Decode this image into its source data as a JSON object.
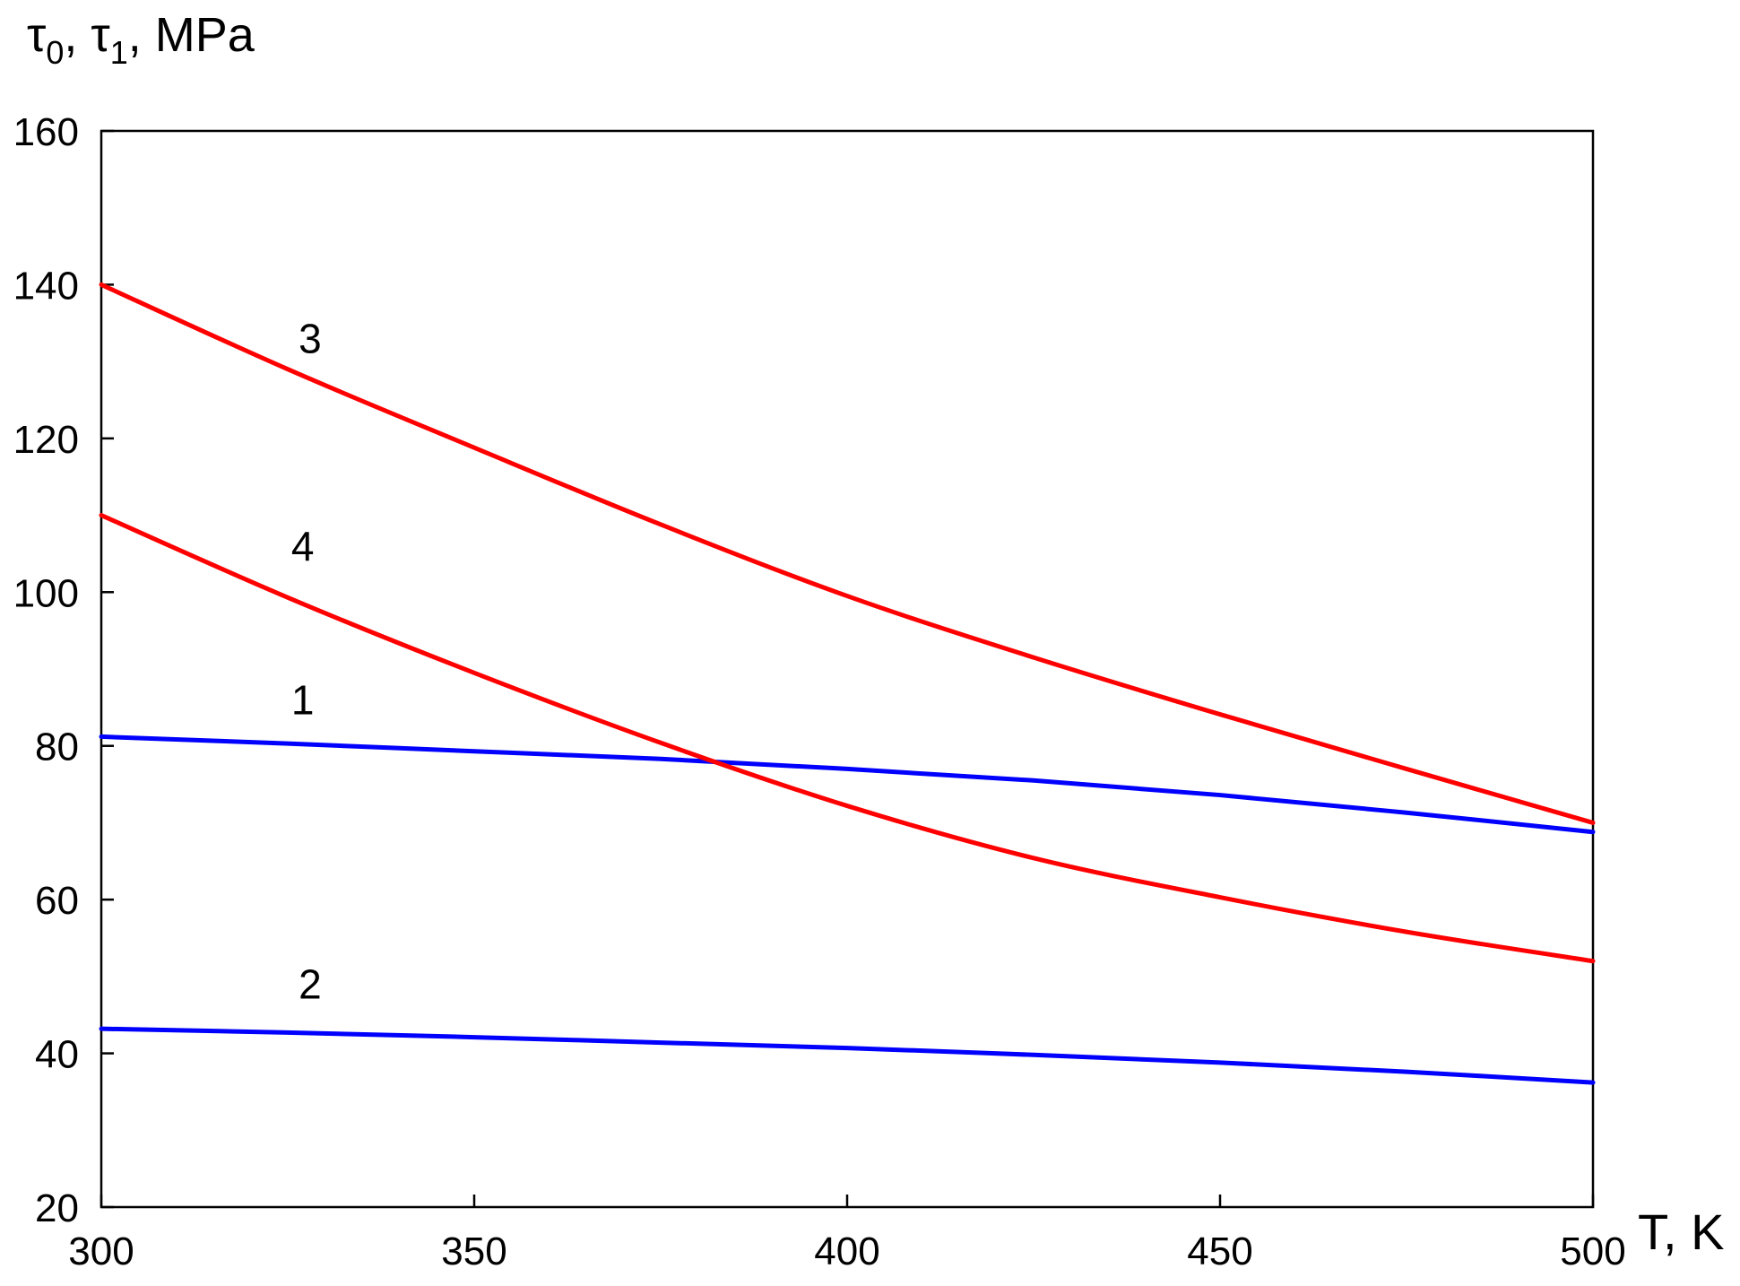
{
  "chart_data": {
    "type": "line",
    "title": "",
    "ylabel": {
      "symbol_a": "τ",
      "sub_a": "0",
      "separator": ", ",
      "symbol_b": "τ",
      "sub_b": "1",
      "unit": ", MPa"
    },
    "xlabel": "T, K",
    "xlim": [
      300,
      500
    ],
    "ylim": [
      20,
      160
    ],
    "xticks": [
      300,
      350,
      400,
      450,
      500
    ],
    "yticks": [
      20,
      40,
      60,
      80,
      100,
      120,
      140,
      160
    ],
    "grid": false,
    "series": [
      {
        "name": "1",
        "color": "#0000ff",
        "label_at": [
          327,
          86
        ],
        "x": [
          300,
          325,
          350,
          375,
          400,
          425,
          450,
          475,
          500
        ],
        "y": [
          81.2,
          80.3,
          79.3,
          78.3,
          77.0,
          75.5,
          73.6,
          71.3,
          68.8
        ]
      },
      {
        "name": "2",
        "color": "#0000ff",
        "label_at": [
          328,
          49
        ],
        "x": [
          300,
          325,
          350,
          375,
          400,
          425,
          450,
          475,
          500
        ],
        "y": [
          43.2,
          42.7,
          42.1,
          41.4,
          40.7,
          39.8,
          38.8,
          37.6,
          36.2
        ]
      },
      {
        "name": "3",
        "color": "#ff0000",
        "label_at": [
          328,
          133
        ],
        "x": [
          300,
          325,
          350,
          375,
          400,
          425,
          450,
          475,
          500
        ],
        "y": [
          140.0,
          129.0,
          118.8,
          108.8,
          99.5,
          91.5,
          84.1,
          77.0,
          70.0
        ]
      },
      {
        "name": "4",
        "color": "#ff0000",
        "label_at": [
          327,
          106
        ],
        "x": [
          300,
          325,
          350,
          375,
          400,
          425,
          450,
          475,
          500
        ],
        "y": [
          110.0,
          99.3,
          89.5,
          80.4,
          72.2,
          65.4,
          60.3,
          55.8,
          52.0
        ]
      }
    ]
  }
}
